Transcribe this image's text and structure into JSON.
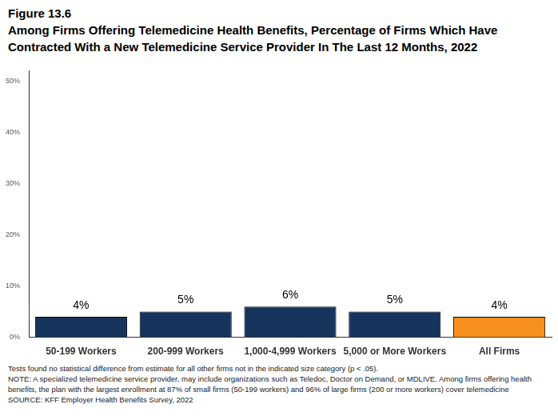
{
  "chart_data": {
    "type": "bar",
    "figure_label": "Figure 13.6",
    "title": "Among Firms Offering Telemedicine Health Benefits, Percentage of Firms Which Have Contracted With a New Telemedicine Service Provider In The Last 12 Months, 2022",
    "categories": [
      "50-199 Workers",
      "200-999 Workers",
      "1,000-4,999 Workers",
      "5,000 or More Workers",
      "All Firms"
    ],
    "values": [
      4,
      5,
      6,
      5,
      4
    ],
    "value_labels": [
      "4%",
      "5%",
      "6%",
      "5%",
      "4%"
    ],
    "colors": [
      "#16345c",
      "#16345c",
      "#16345c",
      "#16345c",
      "#f7901e"
    ],
    "ylim": [
      0,
      52
    ],
    "yticks": [
      {
        "value": 0,
        "label": "0%"
      },
      {
        "value": 10,
        "label": "10%"
      },
      {
        "value": 20,
        "label": "20%"
      },
      {
        "value": 30,
        "label": "30%"
      },
      {
        "value": 40,
        "label": "40%"
      },
      {
        "value": 50,
        "label": "50%"
      }
    ],
    "grid": false,
    "data_labels": true,
    "notes": [
      "Tests found no statistical difference from estimate for all other firms not in the indicated size category (p < .05).",
      "NOTE: A specialized telemedicine service provider, may include organizations such as Teledoc, Doctor on Demand, or MDLIVE. Among firms offering health benefits, the plan with the largest enrollment at 87% of small firms (50-199 workers) and 96% of large firms (200 or more workers) cover telemedicine",
      "SOURCE: KFF Employer Health Benefits Survey, 2022"
    ]
  }
}
